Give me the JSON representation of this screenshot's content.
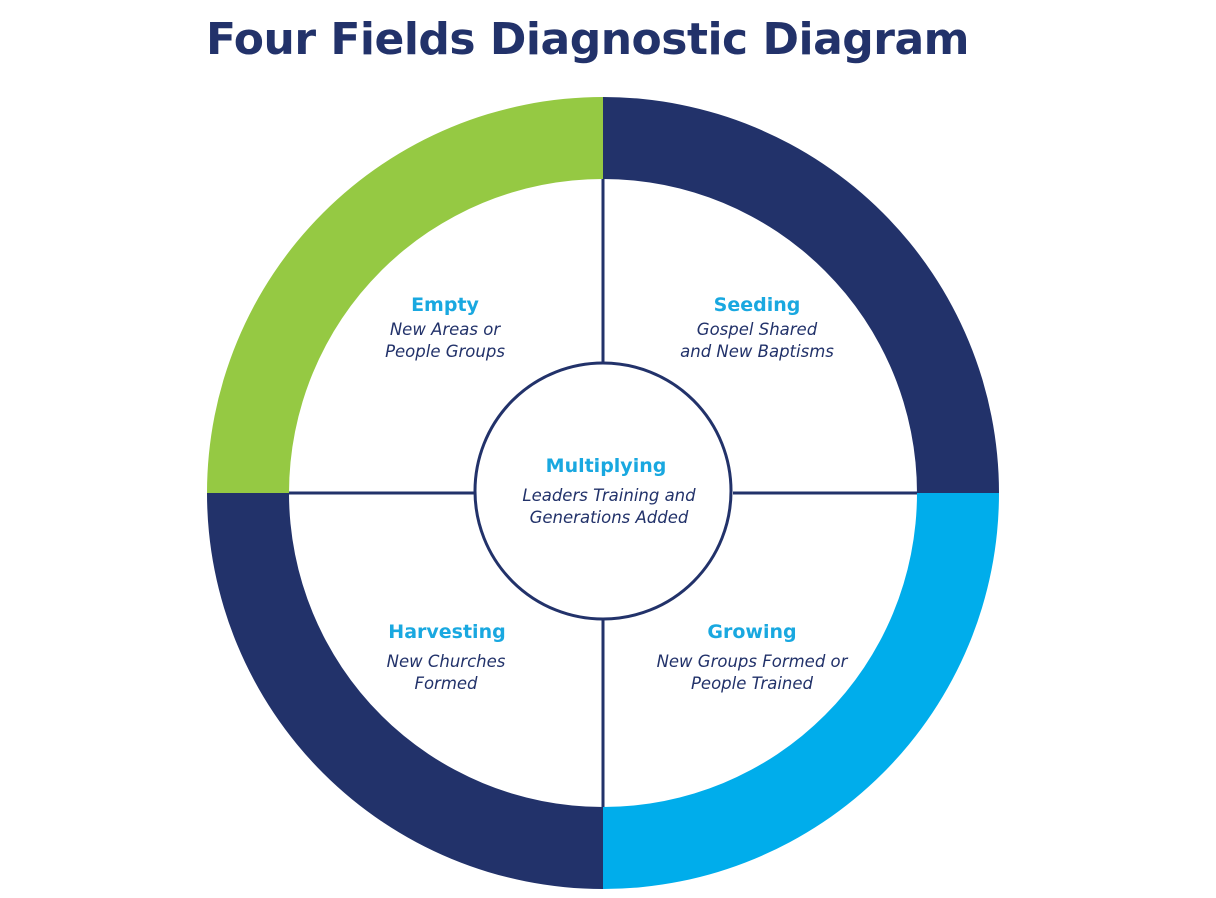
{
  "title": "Four Fields Diagnostic Diagram",
  "colors": {
    "navy": "#22326a",
    "green": "#95c943",
    "sky": "#00adeb",
    "label": "#19a8e0",
    "text": "#22326a",
    "background": "#ffffff"
  },
  "diagram": {
    "center": {
      "name": "Multiplying",
      "description_lines": [
        "Leaders Training and",
        "Generations Added"
      ]
    },
    "quadrants": [
      {
        "id": "empty",
        "position": "top-left",
        "ring_color": "green",
        "name": "Empty",
        "description_lines": [
          "New Areas or",
          "People Groups"
        ]
      },
      {
        "id": "seeding",
        "position": "top-right",
        "ring_color": "navy",
        "name": "Seeding",
        "description_lines": [
          "Gospel Shared",
          "and New Baptisms"
        ]
      },
      {
        "id": "harvesting",
        "position": "bottom-left",
        "ring_color": "navy",
        "name": "Harvesting",
        "description_lines": [
          "New Churches",
          "Formed"
        ]
      },
      {
        "id": "growing",
        "position": "bottom-right",
        "ring_color": "sky",
        "name": "Growing",
        "description_lines": [
          "New Groups Formed or",
          "People Trained"
        ]
      }
    ]
  }
}
